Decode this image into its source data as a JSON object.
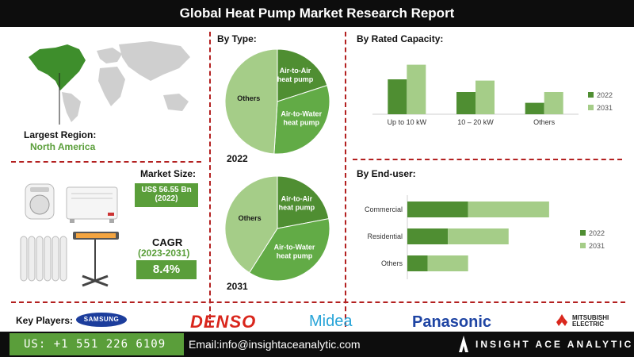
{
  "header": {
    "title": "Global Heat Pump Market Research Report"
  },
  "region": {
    "label": "Largest Region:",
    "value": "North America"
  },
  "market_size": {
    "label": "Market Size:",
    "value": "US$ 56.55 Bn",
    "year": "(2022)"
  },
  "cagr": {
    "label": "CAGR",
    "period": "(2023-2031)",
    "value": "8.4%"
  },
  "by_type": {
    "title": "By  Type:",
    "year_a": "2022",
    "year_b": "2031"
  },
  "by_capacity": {
    "title": "By Rated Capacity:"
  },
  "by_enduser": {
    "title": "By End-user:"
  },
  "key_players": {
    "label": "Key Players:",
    "logos": [
      "SAMSUNG",
      "DENSO",
      "Midea",
      "Panasonic",
      "MITSUBISHI",
      "ELECTRIC"
    ]
  },
  "footer": {
    "phone": "US: +1 551 226 6109",
    "email": "Email:info@insightaceanalytic.com",
    "brand": "INSIGHT ACE ANALYTIC"
  },
  "colors": {
    "dark_green": "#4f8e32",
    "mid_green": "#62ab46",
    "light_green": "#a5cd88",
    "accent_red": "#b32020"
  },
  "chart_data": [
    {
      "type": "pie",
      "title": "2022",
      "labels": [
        "Air-to-Air heat pump",
        "Air-to-Water heat pump",
        "Others"
      ],
      "values": [
        20,
        31,
        49
      ]
    },
    {
      "type": "pie",
      "title": "2031",
      "labels": [
        "Air-to-Air heat pump",
        "Air-to-Water heat pump",
        "Others"
      ],
      "values": [
        22,
        37,
        41
      ]
    },
    {
      "type": "bar",
      "title": "By Rated Capacity:",
      "categories": [
        "Up to 10 kW",
        "10 – 20 kW",
        "Others"
      ],
      "series": [
        {
          "name": "2022",
          "values": [
            5.5,
            3.5,
            1.8
          ]
        },
        {
          "name": "2031",
          "values": [
            7.8,
            5.3,
            3.5
          ]
        }
      ],
      "ylim": [
        0,
        9
      ],
      "legend": "right"
    },
    {
      "type": "bar",
      "orientation": "horizontal",
      "stacked": true,
      "title": "By End-user:",
      "categories": [
        "Commercial",
        "Residential",
        "Others"
      ],
      "series": [
        {
          "name": "2022",
          "values": [
            3.0,
            2.0,
            1.0
          ]
        },
        {
          "name": "2031",
          "values": [
            4.0,
            3.0,
            2.0
          ]
        }
      ],
      "xlim": [
        0,
        9
      ],
      "legend": "right"
    }
  ]
}
